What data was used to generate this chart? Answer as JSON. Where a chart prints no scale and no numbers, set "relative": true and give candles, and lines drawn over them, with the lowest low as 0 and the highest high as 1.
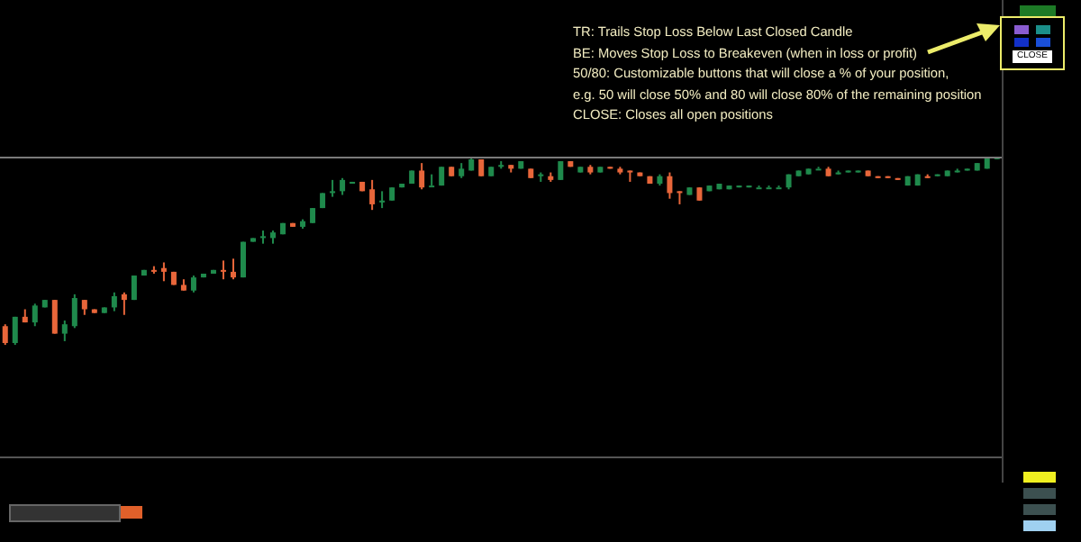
{
  "chart_data": {
    "type": "candlestick",
    "relative": true,
    "categories": [
      null,
      null,
      null,
      null,
      null,
      null,
      null,
      null,
      null,
      null,
      null,
      null,
      null,
      null,
      null,
      null,
      null,
      null,
      null,
      null,
      null,
      null,
      null,
      null,
      null,
      null,
      null,
      null,
      null,
      null,
      null,
      null,
      null,
      null,
      null,
      null,
      null,
      null,
      null,
      null,
      null,
      null,
      null,
      null,
      null,
      null,
      null,
      null,
      null,
      null,
      null,
      null,
      null,
      null,
      null,
      null,
      null,
      null,
      null,
      null,
      null,
      null,
      null,
      null,
      null,
      null,
      null,
      null,
      null,
      null,
      null,
      null,
      null,
      null,
      null,
      null,
      null,
      null,
      null,
      null,
      null,
      null,
      null,
      null,
      null,
      null,
      null,
      null,
      null,
      null,
      null,
      null,
      null,
      null,
      null,
      null,
      null,
      null,
      null,
      null,
      null
    ],
    "ohlc": [
      [
        0.1,
        0.11,
        0.0,
        0.01
      ],
      [
        0.01,
        0.15,
        0.0,
        0.15
      ],
      [
        0.15,
        0.19,
        0.12,
        0.12
      ],
      [
        0.12,
        0.22,
        0.1,
        0.21
      ],
      [
        0.2,
        0.24,
        0.2,
        0.24
      ],
      [
        0.24,
        0.24,
        0.06,
        0.06
      ],
      [
        0.06,
        0.13,
        0.02,
        0.11
      ],
      [
        0.1,
        0.27,
        0.09,
        0.25
      ],
      [
        0.24,
        0.24,
        0.16,
        0.19
      ],
      [
        0.19,
        0.19,
        0.17,
        0.17
      ],
      [
        0.17,
        0.2,
        0.17,
        0.2
      ],
      [
        0.2,
        0.28,
        0.18,
        0.26
      ],
      [
        0.27,
        0.28,
        0.16,
        0.24
      ],
      [
        0.24,
        0.37,
        0.24,
        0.37
      ],
      [
        0.37,
        0.4,
        0.37,
        0.4
      ],
      [
        0.4,
        0.42,
        0.38,
        0.39
      ],
      [
        0.41,
        0.44,
        0.34,
        0.39
      ],
      [
        0.39,
        0.39,
        0.32,
        0.32
      ],
      [
        0.32,
        0.35,
        0.29,
        0.29
      ],
      [
        0.29,
        0.37,
        0.28,
        0.36
      ],
      [
        0.36,
        0.38,
        0.36,
        0.38
      ],
      [
        0.38,
        0.4,
        0.38,
        0.4
      ],
      [
        0.4,
        0.45,
        0.35,
        0.39
      ],
      [
        0.39,
        0.46,
        0.35,
        0.36
      ],
      [
        0.36,
        0.55,
        0.36,
        0.55
      ],
      [
        0.55,
        0.57,
        0.55,
        0.57
      ],
      [
        0.57,
        0.61,
        0.54,
        0.58
      ],
      [
        0.57,
        0.61,
        0.54,
        0.6
      ],
      [
        0.59,
        0.65,
        0.59,
        0.65
      ],
      [
        0.65,
        0.65,
        0.63,
        0.63
      ],
      [
        0.63,
        0.67,
        0.62,
        0.66
      ],
      [
        0.65,
        0.73,
        0.65,
        0.73
      ],
      [
        0.73,
        0.81,
        0.73,
        0.81
      ],
      [
        0.81,
        0.88,
        0.79,
        0.82
      ],
      [
        0.82,
        0.89,
        0.8,
        0.88
      ],
      [
        0.86,
        0.87,
        0.86,
        0.87
      ],
      [
        0.87,
        0.87,
        0.82,
        0.82
      ],
      [
        0.83,
        0.88,
        0.72,
        0.75
      ],
      [
        0.76,
        0.82,
        0.73,
        0.77
      ],
      [
        0.77,
        0.84,
        0.77,
        0.84
      ],
      [
        0.84,
        0.86,
        0.84,
        0.86
      ],
      [
        0.86,
        0.93,
        0.86,
        0.93
      ],
      [
        0.93,
        0.97,
        0.83,
        0.84
      ],
      [
        0.85,
        0.91,
        0.85,
        0.85
      ],
      [
        0.85,
        0.95,
        0.85,
        0.95
      ],
      [
        0.95,
        0.95,
        0.9,
        0.9
      ],
      [
        0.9,
        0.97,
        0.89,
        0.94
      ],
      [
        0.93,
        1.0,
        0.93,
        0.99
      ],
      [
        0.99,
        0.99,
        0.9,
        0.9
      ],
      [
        0.9,
        0.95,
        0.9,
        0.95
      ],
      [
        0.95,
        0.98,
        0.94,
        0.96
      ],
      [
        0.96,
        0.96,
        0.92,
        0.94
      ],
      [
        0.94,
        0.98,
        0.94,
        0.98
      ],
      [
        0.94,
        0.94,
        0.89,
        0.89
      ],
      [
        0.9,
        0.92,
        0.87,
        0.91
      ],
      [
        0.9,
        0.92,
        0.87,
        0.88
      ],
      [
        0.88,
        0.98,
        0.88,
        0.98
      ],
      [
        0.98,
        0.98,
        0.95,
        0.95
      ],
      [
        0.92,
        0.95,
        0.92,
        0.95
      ],
      [
        0.95,
        0.96,
        0.91,
        0.92
      ],
      [
        0.92,
        0.95,
        0.92,
        0.95
      ],
      [
        0.95,
        0.95,
        0.94,
        0.94
      ],
      [
        0.94,
        0.95,
        0.91,
        0.92
      ],
      [
        0.93,
        0.93,
        0.87,
        0.92
      ],
      [
        0.92,
        0.92,
        0.9,
        0.9
      ],
      [
        0.9,
        0.9,
        0.86,
        0.86
      ],
      [
        0.86,
        0.91,
        0.85,
        0.9
      ],
      [
        0.9,
        0.92,
        0.78,
        0.81
      ],
      [
        0.82,
        0.82,
        0.75,
        0.81
      ],
      [
        0.8,
        0.84,
        0.8,
        0.84
      ],
      [
        0.84,
        0.84,
        0.77,
        0.77
      ],
      [
        0.82,
        0.85,
        0.82,
        0.85
      ],
      [
        0.83,
        0.86,
        0.83,
        0.86
      ],
      [
        0.83,
        0.85,
        0.83,
        0.85
      ],
      [
        0.84,
        0.85,
        0.84,
        0.85
      ],
      [
        0.84,
        0.85,
        0.84,
        0.85
      ],
      [
        0.84,
        0.85,
        0.84,
        0.84
      ],
      [
        0.84,
        0.85,
        0.84,
        0.84
      ],
      [
        0.84,
        0.85,
        0.84,
        0.84
      ],
      [
        0.84,
        0.91,
        0.83,
        0.91
      ],
      [
        0.9,
        0.93,
        0.9,
        0.93
      ],
      [
        0.91,
        0.94,
        0.91,
        0.94
      ],
      [
        0.94,
        0.95,
        0.94,
        0.94
      ],
      [
        0.94,
        0.95,
        0.9,
        0.9
      ],
      [
        0.91,
        0.93,
        0.91,
        0.92
      ],
      [
        0.92,
        0.93,
        0.92,
        0.93
      ],
      [
        0.92,
        0.93,
        0.92,
        0.93
      ],
      [
        0.93,
        0.93,
        0.9,
        0.9
      ],
      [
        0.9,
        0.9,
        0.89,
        0.89
      ],
      [
        0.9,
        0.9,
        0.89,
        0.89
      ],
      [
        0.89,
        0.89,
        0.88,
        0.88
      ],
      [
        0.85,
        0.9,
        0.85,
        0.9
      ],
      [
        0.85,
        0.91,
        0.85,
        0.91
      ],
      [
        0.9,
        0.91,
        0.89,
        0.89
      ],
      [
        0.9,
        0.91,
        0.9,
        0.91
      ],
      [
        0.9,
        0.93,
        0.9,
        0.93
      ],
      [
        0.93,
        0.94,
        0.92,
        0.93
      ],
      [
        0.93,
        0.94,
        0.93,
        0.94
      ],
      [
        0.93,
        0.97,
        0.93,
        0.97
      ],
      [
        0.94,
        1.0,
        0.94,
        1.0
      ],
      [
        1.0,
        1.0,
        0.99,
        1.0
      ]
    ],
    "colors": [
      "#e8663a",
      "#1f8a4c",
      "#e8663a",
      "#1f8a4c",
      "#1f8a4c",
      "#e8663a",
      "#1f8a4c",
      "#1f8a4c",
      "#e8663a",
      "#e8663a",
      "#1f8a4c",
      "#1f8a4c",
      "#e8663a",
      "#1f8a4c",
      "#1f8a4c",
      "#e8663a",
      "#e8663a",
      "#e8663a",
      "#e8663a",
      "#1f8a4c",
      "#1f8a4c",
      "#1f8a4c",
      "#e8663a",
      "#e8663a",
      "#1f8a4c",
      "#1f8a4c",
      "#1f8a4c",
      "#1f8a4c",
      "#1f8a4c",
      "#e8663a",
      "#1f8a4c",
      "#1f8a4c",
      "#1f8a4c",
      "#1f8a4c",
      "#1f8a4c",
      "#1f8a4c",
      "#e8663a",
      "#e8663a",
      "#1f8a4c",
      "#1f8a4c",
      "#1f8a4c",
      "#1f8a4c",
      "#e8663a",
      "#1f8a4c",
      "#1f8a4c",
      "#e8663a",
      "#1f8a4c",
      "#1f8a4c",
      "#e8663a",
      "#1f8a4c",
      "#1f8a4c",
      "#e8663a",
      "#1f8a4c",
      "#e8663a",
      "#1f8a4c",
      "#e8663a",
      "#1f8a4c",
      "#e8663a",
      "#1f8a4c",
      "#e8663a",
      "#1f8a4c",
      "#e8663a",
      "#e8663a",
      "#e8663a",
      "#e8663a",
      "#e8663a",
      "#1f8a4c",
      "#e8663a",
      "#e8663a",
      "#1f8a4c",
      "#e8663a",
      "#1f8a4c",
      "#1f8a4c",
      "#1f8a4c",
      "#1f8a4c",
      "#1f8a4c",
      "#1f8a4c",
      "#1f8a4c",
      "#1f8a4c",
      "#1f8a4c",
      "#1f8a4c",
      "#1f8a4c",
      "#1f8a4c",
      "#e8663a",
      "#1f8a4c",
      "#1f8a4c",
      "#1f8a4c",
      "#e8663a",
      "#e8663a",
      "#e8663a",
      "#e8663a",
      "#1f8a4c",
      "#1f8a4c",
      "#e8663a",
      "#1f8a4c",
      "#1f8a4c",
      "#1f8a4c",
      "#1f8a4c",
      "#1f8a4c",
      "#1f8a4c",
      "#1f8a4c"
    ],
    "ref_lines": [
      {
        "axis": "y",
        "value": 1.0,
        "color": "#7a7a7a"
      }
    ],
    "annotations": [
      "TR: Trails Stop Loss Below Last Closed Candle",
      "BE: Moves Stop Loss to Breakeven (when in loss or profit)",
      "50/80: Customizable buttons that will close a % of your position,",
      "e.g. 50 will close 50% and 80 will close 80% of the remaining position",
      "CLOSE: Closes all open positions",
      "CLOSE"
    ]
  }
}
